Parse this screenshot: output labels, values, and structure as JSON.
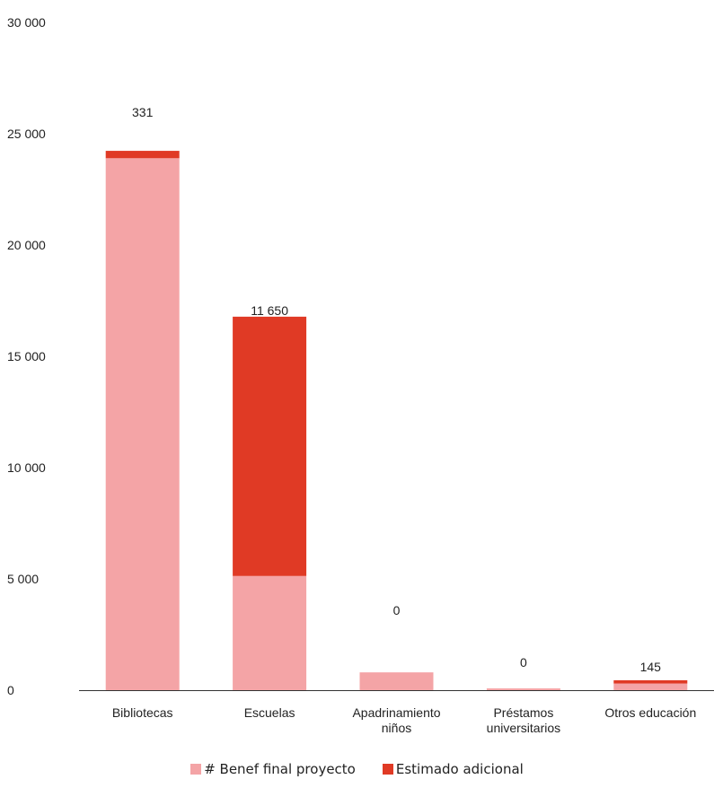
{
  "chart_data": {
    "type": "bar",
    "stacked": true,
    "categories": [
      [
        "Bibliotecas"
      ],
      [
        "Escuelas"
      ],
      [
        "Apadrinamiento",
        "niños"
      ],
      [
        "Préstamos",
        "universitarios"
      ],
      [
        "Otros educación"
      ]
    ],
    "series": [
      {
        "name": "# Benef final proyecto",
        "color": "#f4a4a6",
        "values": [
          23900,
          5130,
          800,
          80,
          300
        ]
      },
      {
        "name": "Estimado adicional",
        "color": "#e03a25",
        "values": [
          331,
          11650,
          0,
          0,
          145
        ]
      }
    ],
    "data_labels": [
      "331",
      "11 650",
      "0",
      "0",
      "145"
    ],
    "y_ticks": [
      {
        "value": 0,
        "label": "0"
      },
      {
        "value": 5000,
        "label": "5 000"
      },
      {
        "value": 10000,
        "label": "10 000"
      },
      {
        "value": 15000,
        "label": "15 000"
      },
      {
        "value": 20000,
        "label": "20 000"
      },
      {
        "value": 25000,
        "label": "25 000"
      },
      {
        "value": 30000,
        "label": "30 000"
      }
    ],
    "ylim": [
      0,
      30000
    ],
    "grid": false,
    "legend_position": "bottom"
  }
}
